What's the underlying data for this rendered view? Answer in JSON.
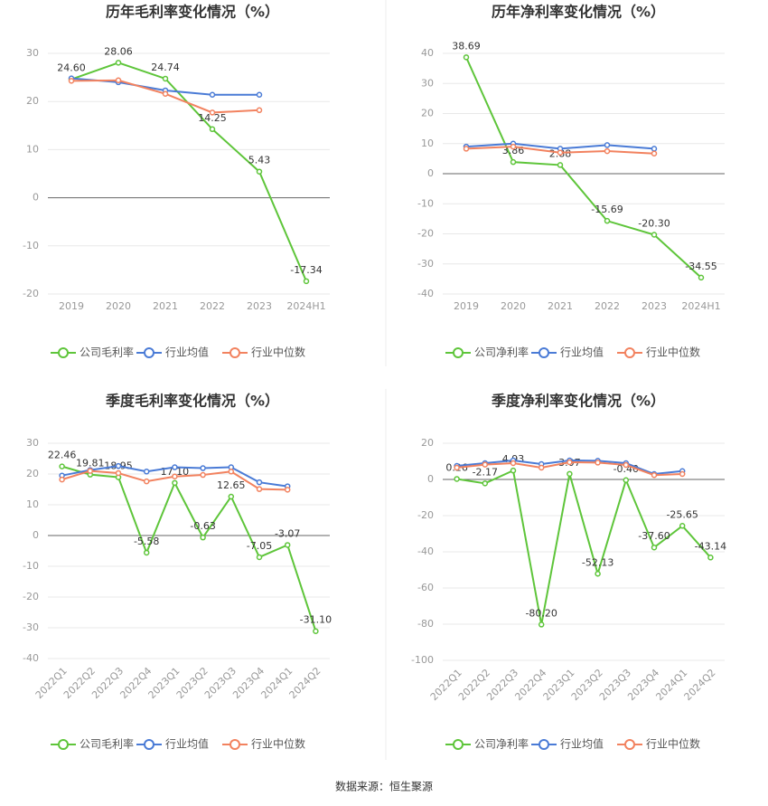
{
  "chart_data": [
    {
      "type": "line",
      "title": "历年毛利率变化情况（%）",
      "categories": [
        "2019",
        "2020",
        "2021",
        "2022",
        "2023",
        "2024H1"
      ],
      "ylim": [
        -20,
        30
      ],
      "yticks": [
        -20,
        -10,
        0,
        10,
        20,
        30
      ],
      "grid": true,
      "series": [
        {
          "name": "公司毛利率",
          "color": "#5ec53a",
          "values": [
            24.6,
            28.06,
            24.74,
            14.25,
            5.43,
            -17.34
          ],
          "value_labels": [
            "24.60",
            "28.06",
            "24.74",
            "14.25",
            "5.43",
            "-17.34"
          ]
        },
        {
          "name": "行业均值",
          "color": "#4a7bd6",
          "values": [
            24.8,
            24.0,
            22.3,
            21.4,
            21.4,
            null
          ]
        },
        {
          "name": "行业中位数",
          "color": "#f2825f",
          "values": [
            24.3,
            24.4,
            21.6,
            17.7,
            18.2,
            null
          ]
        }
      ]
    },
    {
      "type": "line",
      "title": "历年净利率变化情况（%）",
      "categories": [
        "2019",
        "2020",
        "2021",
        "2022",
        "2023",
        "2024H1"
      ],
      "ylim": [
        -40,
        40
      ],
      "yticks": [
        -40,
        -30,
        -20,
        -10,
        0,
        10,
        20,
        30,
        40
      ],
      "grid": true,
      "series": [
        {
          "name": "公司净利率",
          "color": "#5ec53a",
          "values": [
            38.69,
            3.86,
            2.88,
            -15.69,
            -20.3,
            -34.55
          ],
          "value_labels": [
            "38.69",
            "3.86",
            "2.88",
            "-15.69",
            "-20.30",
            "-34.55"
          ]
        },
        {
          "name": "行业均值",
          "color": "#4a7bd6",
          "values": [
            9.0,
            10.0,
            8.3,
            9.5,
            8.3,
            null
          ]
        },
        {
          "name": "行业中位数",
          "color": "#f2825f",
          "values": [
            8.3,
            9.0,
            7.0,
            7.5,
            6.7,
            null
          ]
        }
      ]
    },
    {
      "type": "line",
      "title": "季度毛利率变化情况（%）",
      "categories": [
        "2022Q1",
        "2022Q2",
        "2022Q3",
        "2022Q4",
        "2023Q1",
        "2023Q2",
        "2023Q3",
        "2023Q4",
        "2024Q1",
        "2024Q2"
      ],
      "ylim": [
        -40,
        30
      ],
      "yticks": [
        -40,
        -30,
        -20,
        -10,
        0,
        10,
        20,
        30
      ],
      "grid": true,
      "series": [
        {
          "name": "公司毛利率",
          "color": "#5ec53a",
          "values": [
            22.46,
            19.81,
            18.95,
            -5.58,
            17.1,
            -0.63,
            12.65,
            -7.05,
            -3.07,
            -31.1
          ],
          "value_labels": [
            "22.46",
            "19.81",
            "18.95",
            "-5.58",
            "17.10",
            "-0.63",
            "12.65",
            "-7.05",
            "-3.07",
            "-31.10"
          ]
        },
        {
          "name": "行业均值",
          "color": "#4a7bd6",
          "values": [
            19.5,
            21.3,
            22.6,
            20.8,
            22.2,
            21.9,
            22.2,
            17.3,
            16.0,
            null
          ]
        },
        {
          "name": "行业中位数",
          "color": "#f2825f",
          "values": [
            18.2,
            21.0,
            20.3,
            17.6,
            19.2,
            19.7,
            20.8,
            15.1,
            14.9,
            null
          ]
        }
      ]
    },
    {
      "type": "line",
      "title": "季度净利率变化情况（%）",
      "categories": [
        "2022Q1",
        "2022Q2",
        "2022Q3",
        "2022Q4",
        "2023Q1",
        "2023Q2",
        "2023Q3",
        "2023Q4",
        "2024Q1",
        "2024Q2"
      ],
      "ylim": [
        -100,
        20
      ],
      "yticks": [
        -100,
        -80,
        -60,
        -40,
        -20,
        0,
        20
      ],
      "grid": true,
      "series": [
        {
          "name": "公司净利率",
          "color": "#5ec53a",
          "values": [
            0.26,
            -2.17,
            4.93,
            -80.2,
            3.07,
            -52.13,
            -0.4,
            -37.6,
            -25.65,
            -43.14
          ],
          "value_labels": [
            "0.26",
            "-2.17",
            "4.93",
            "-80.20",
            "3.07",
            "-52.13",
            "-0.40",
            "-37.60",
            "-25.65",
            "-43.14"
          ]
        },
        {
          "name": "行业均值",
          "color": "#4a7bd6",
          "values": [
            7.5,
            9.0,
            10.5,
            8.5,
            10.5,
            10.3,
            9.0,
            3.0,
            4.6,
            null
          ]
        },
        {
          "name": "行业中位数",
          "color": "#f2825f",
          "values": [
            6.5,
            8.2,
            9.0,
            6.5,
            9.5,
            9.3,
            8.0,
            2.4,
            3.0,
            null
          ]
        }
      ]
    }
  ],
  "source": "数据来源：恒生聚源"
}
